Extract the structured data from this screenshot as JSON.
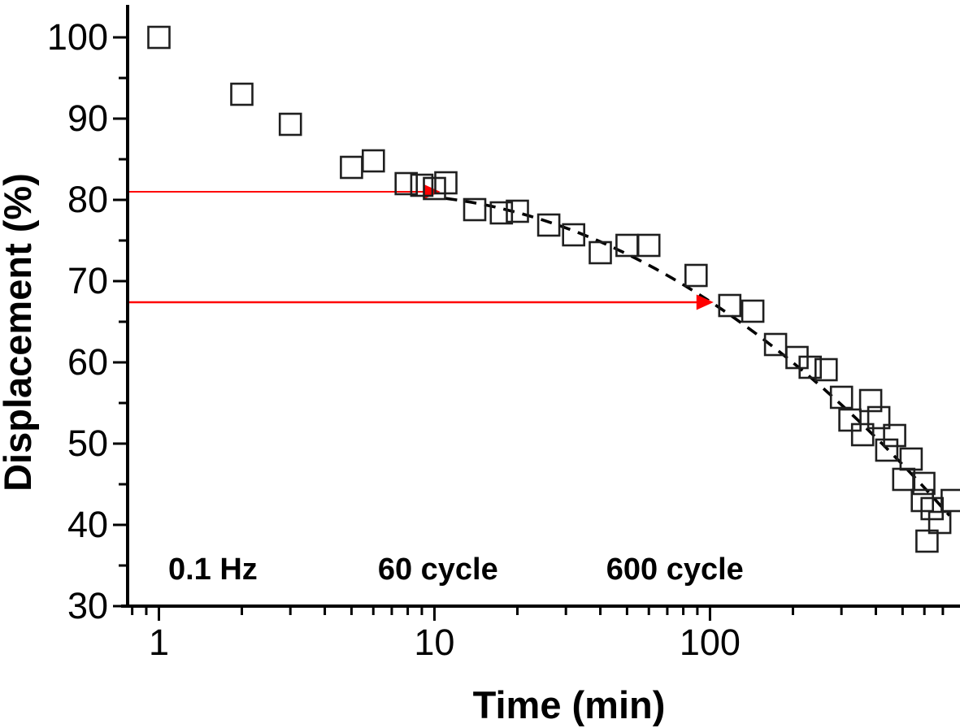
{
  "colors": {
    "background": "#ffffff",
    "axis": "#000000",
    "marker_stroke": "#1f1f1f",
    "fit_line": "#000000",
    "arrow": "#ff0000",
    "text": "#000000"
  },
  "chart_data": {
    "type": "scatter",
    "title": "",
    "xlabel": "Time (min)",
    "ylabel": "Displacement (%)",
    "x_axis": {
      "scale": "log",
      "range": [
        0.77,
        760
      ],
      "major_ticks": [
        1,
        10,
        100
      ],
      "major_tick_labels": [
        "1",
        "10",
        "100"
      ],
      "minor_ticks": [
        0.8,
        0.9,
        2,
        3,
        4,
        5,
        6,
        7,
        8,
        9,
        20,
        30,
        40,
        50,
        60,
        70,
        80,
        90,
        200,
        300,
        400,
        500,
        600,
        700
      ]
    },
    "y_axis": {
      "scale": "linear",
      "range": [
        30,
        104
      ],
      "major_ticks": [
        30,
        40,
        50,
        60,
        70,
        80,
        90,
        100
      ],
      "major_tick_labels": [
        "30",
        "40",
        "50",
        "60",
        "70",
        "80",
        "90",
        "100"
      ],
      "minor_ticks": [
        35,
        45,
        55,
        65,
        75,
        85,
        95
      ]
    },
    "series": [
      {
        "name": "displacement",
        "marker": "open-square",
        "marker_size_px": 26,
        "points": [
          [
            1,
            100
          ],
          [
            2,
            93
          ],
          [
            3,
            89.3
          ],
          [
            5,
            84
          ],
          [
            6,
            84.8
          ],
          [
            7.9,
            82
          ],
          [
            9,
            81.8
          ],
          [
            10,
            81.4
          ],
          [
            11,
            82.1
          ],
          [
            14,
            78.8
          ],
          [
            17.5,
            78.4
          ],
          [
            20,
            78.6
          ],
          [
            26,
            76.9
          ],
          [
            32,
            75.7
          ],
          [
            40,
            73.5
          ],
          [
            50,
            74.4
          ],
          [
            60,
            74.4
          ],
          [
            89,
            70.7
          ],
          [
            118,
            67
          ],
          [
            143,
            66.3
          ],
          [
            173,
            62.2
          ],
          [
            207,
            60.6
          ],
          [
            231,
            59.4
          ],
          [
            264,
            59.1
          ],
          [
            300,
            55.7
          ],
          [
            322,
            52.9
          ],
          [
            358,
            51.1
          ],
          [
            383,
            55.3
          ],
          [
            410,
            53.2
          ],
          [
            438,
            49.2
          ],
          [
            468,
            51
          ],
          [
            505,
            45.6
          ],
          [
            537,
            48.1
          ],
          [
            590,
            43
          ],
          [
            597,
            45.1
          ],
          [
            613,
            38
          ],
          [
            640,
            42
          ],
          [
            682,
            40.3
          ],
          [
            757,
            43
          ]
        ]
      }
    ],
    "fit_line": {
      "style": "dashed",
      "model": "v = A + B*log10(t) + C*log10(t)^2",
      "A": 74.47,
      "B": 15.22,
      "C": -9.353,
      "t_start": 11,
      "t_end": 740
    },
    "arrows": [
      {
        "y": 81.0,
        "x_start": 0.78,
        "x_end": 10.5,
        "direction": "right"
      },
      {
        "y": 67.4,
        "x_start": 0.78,
        "x_end": 103,
        "direction": "right"
      }
    ],
    "annotations": [
      {
        "label": "0.1 Hz",
        "x": 1.57,
        "y": 34.6
      },
      {
        "label": "60 cycle",
        "x": 10.3,
        "y": 34.6
      },
      {
        "label": "600 cycle",
        "x": 74.6,
        "y": 34.6
      }
    ]
  }
}
